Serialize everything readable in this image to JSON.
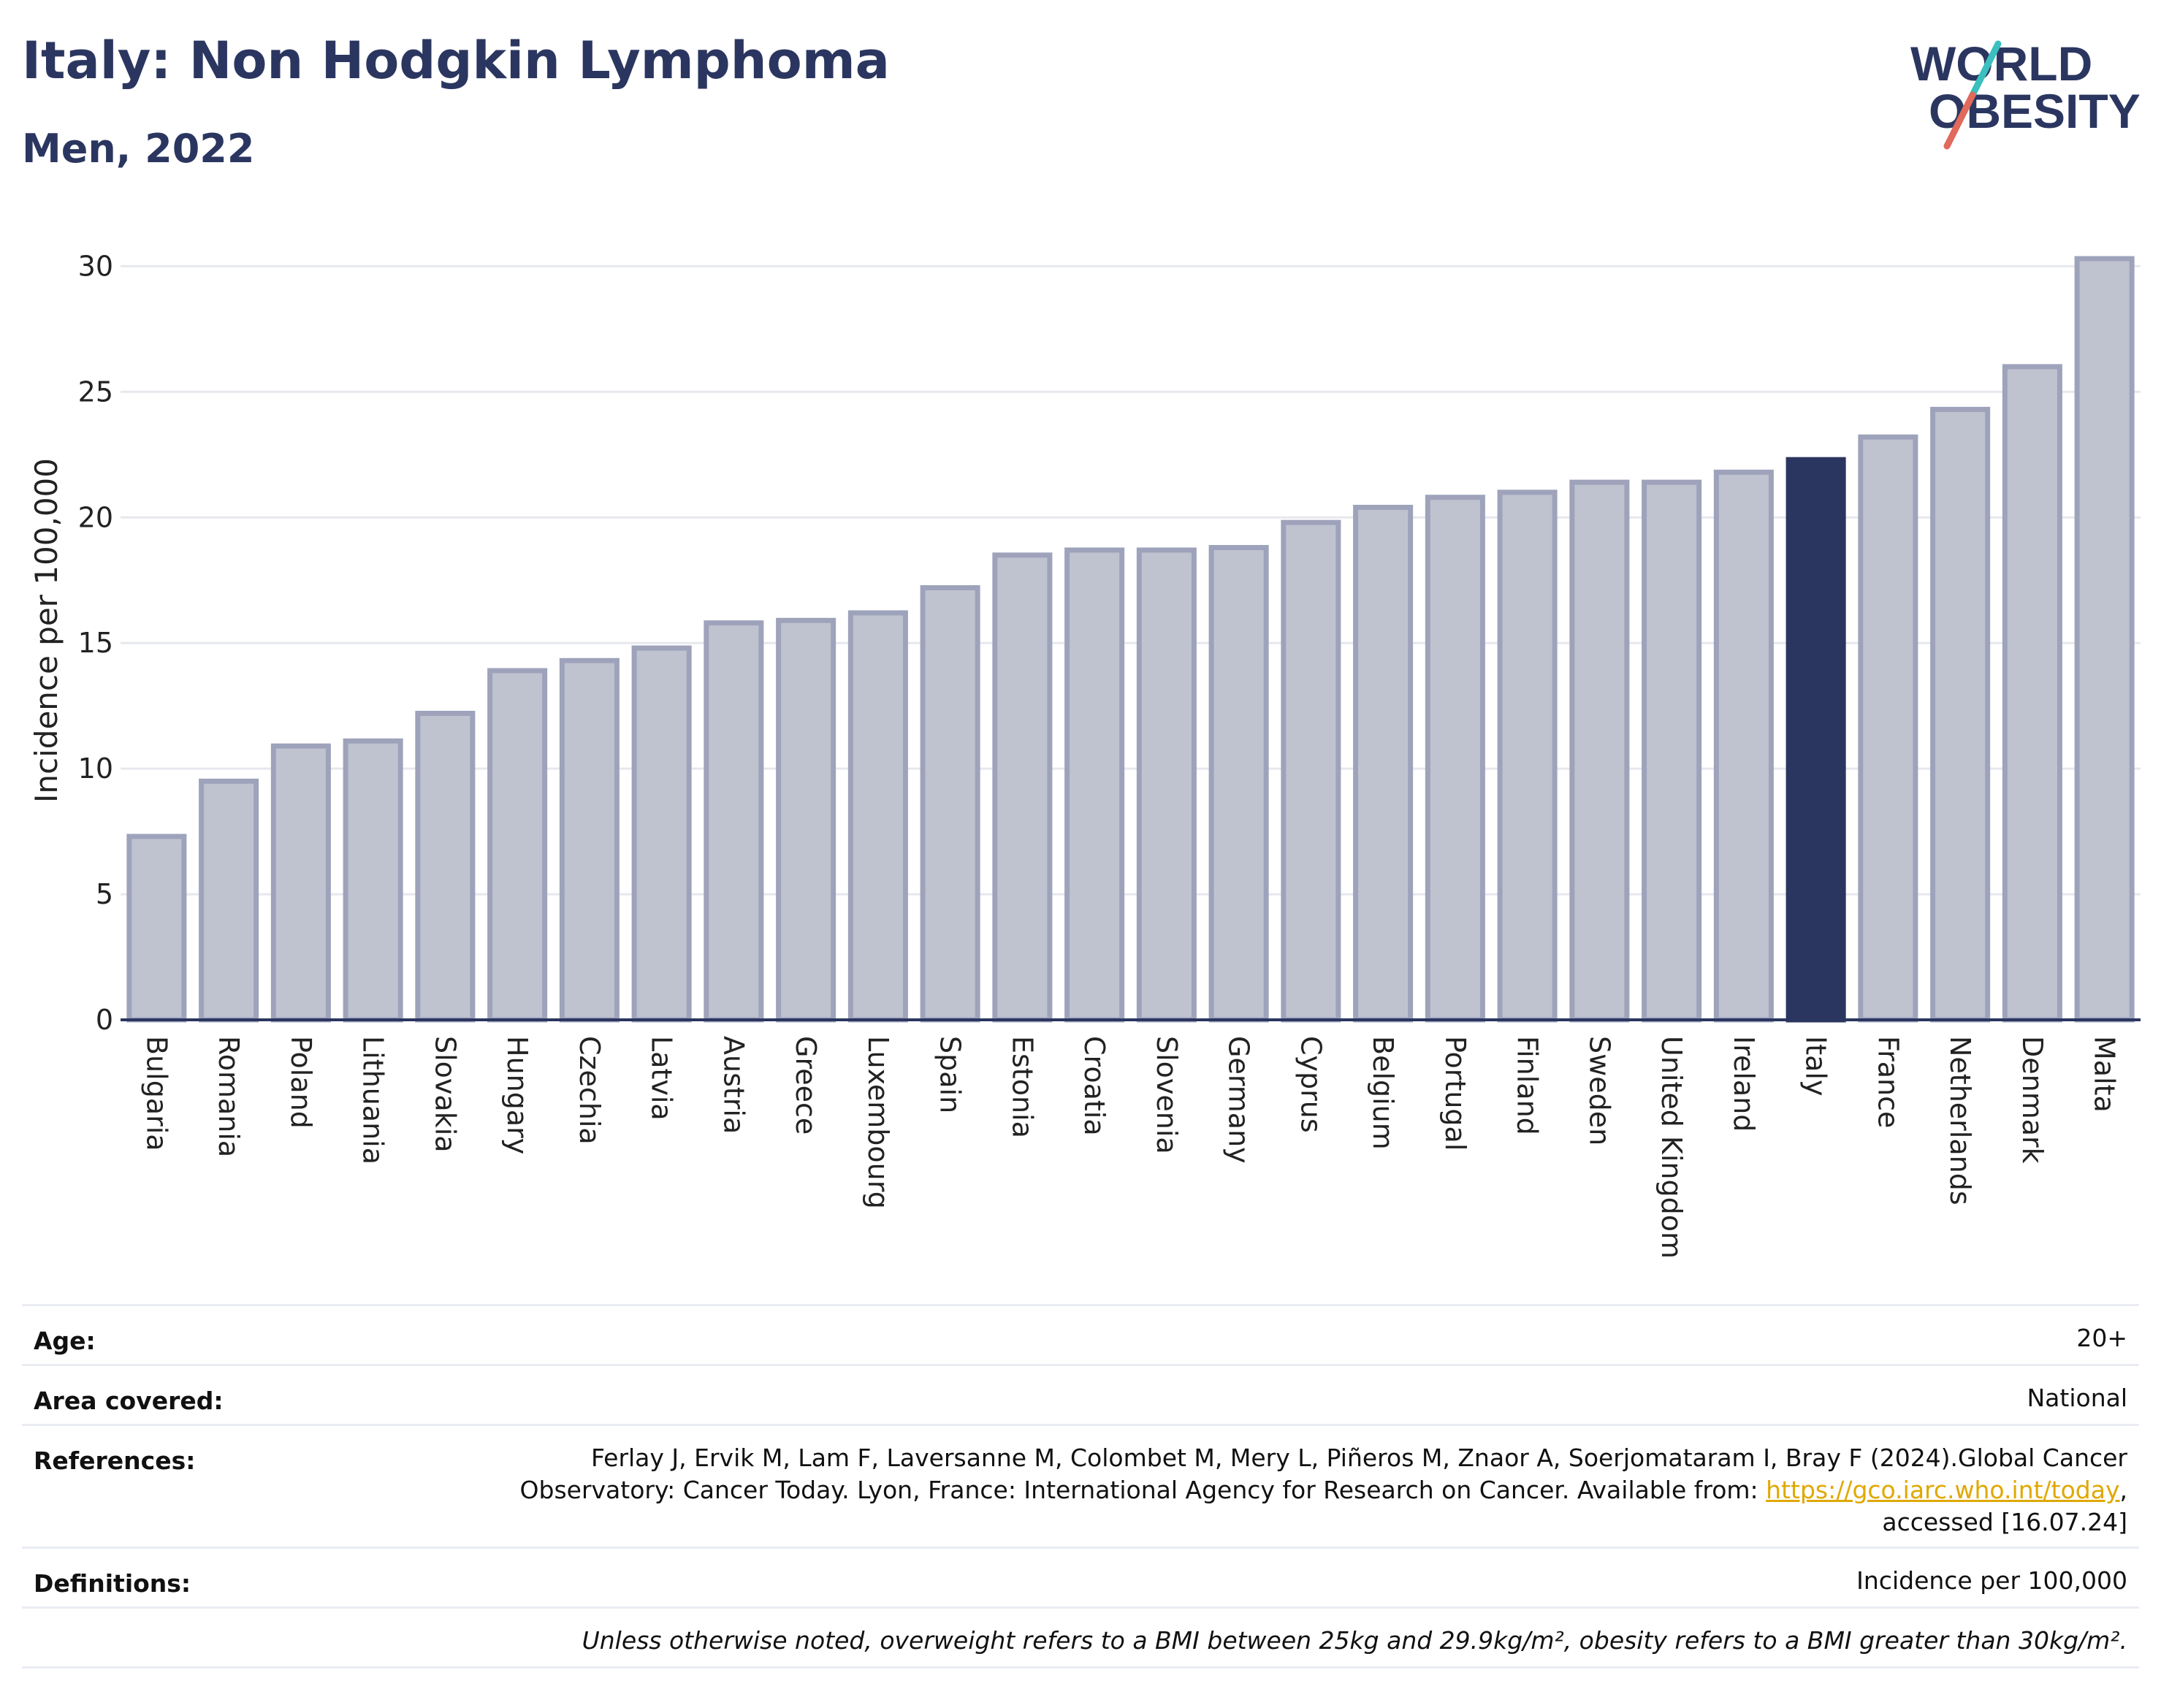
{
  "header": {
    "title": "Italy: Non Hodgkin Lymphoma",
    "subtitle": "Men, 2022"
  },
  "logo": {
    "line1": "WORLD",
    "line2": "OBESITY",
    "colors": {
      "text": "#2b3660",
      "slash_teal": "#3bbfbf",
      "slash_red": "#e06a5c"
    }
  },
  "colors": {
    "bar_default": "#bfc3d0",
    "bar_border": "#9ea3bb",
    "bar_highlight": "#2b3660",
    "axis": "#2b3660",
    "grid": "#e6e8ee"
  },
  "chart_data": {
    "type": "bar",
    "title": "",
    "xlabel": "",
    "ylabel": "Incidence per 100,000",
    "ylim": [
      0,
      31
    ],
    "yticks": [
      0,
      5,
      10,
      15,
      20,
      25,
      30
    ],
    "grid": true,
    "highlight": "Italy",
    "categories": [
      "Bulgaria",
      "Romania",
      "Poland",
      "Lithuania",
      "Slovakia",
      "Hungary",
      "Czechia",
      "Latvia",
      "Austria",
      "Greece",
      "Luxembourg",
      "Spain",
      "Estonia",
      "Croatia",
      "Slovenia",
      "Germany",
      "Cyprus",
      "Belgium",
      "Portugal",
      "Finland",
      "Sweden",
      "United Kingdom",
      "Ireland",
      "Italy",
      "France",
      "Netherlands",
      "Denmark",
      "Malta"
    ],
    "values": [
      7.3,
      9.5,
      10.9,
      11.1,
      12.2,
      13.9,
      14.3,
      14.8,
      15.8,
      15.9,
      16.2,
      17.2,
      18.5,
      18.7,
      18.7,
      18.8,
      19.8,
      20.4,
      20.8,
      21.0,
      21.4,
      21.4,
      21.8,
      22.3,
      23.2,
      24.3,
      26.0,
      30.3
    ]
  },
  "info": {
    "age_label": "Age:",
    "age_value": "20+",
    "area_label": "Area covered:",
    "area_value": "National",
    "references_label": "References:",
    "references_line1": "Ferlay J, Ervik M, Lam F, Laversanne M, Colombet M, Mery L, Piñeros M, Znaor A, Soerjomataram I, Bray F (2024).Global Cancer",
    "references_line2": "Observatory: Cancer Today. Lyon, France: International Agency for Research on Cancer. Available from:",
    "references_link": "https://gco.iarc.who.int/today",
    "references_line2_tail": ",",
    "references_line3": "accessed [16.07.24]",
    "definitions_label": "Definitions:",
    "definitions_value": "Incidence per 100,000",
    "note": "Unless otherwise noted, overweight refers to a BMI between 25kg and 29.9kg/m², obesity refers to a BMI greater than 30kg/m²."
  }
}
